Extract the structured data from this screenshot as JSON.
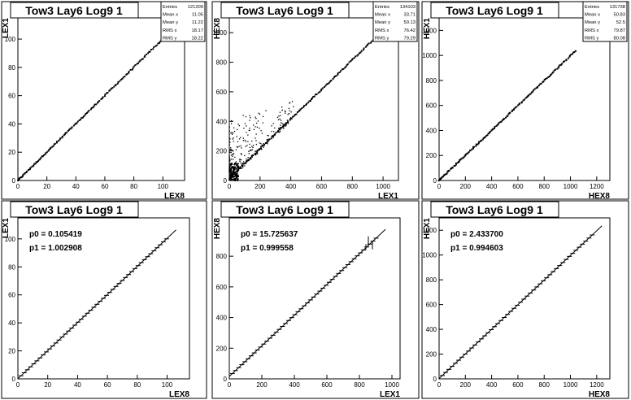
{
  "charts": [
    {
      "type": "scatter",
      "title": "Tow3 Lay6 Log9 1",
      "xlabel": "LEX8",
      "ylabel": "LEX1",
      "xlim": [
        0,
        115
      ],
      "ylim": [
        0,
        115
      ],
      "xticks": [
        0,
        20,
        40,
        60,
        80,
        100
      ],
      "yticks": [
        0,
        20,
        40,
        60,
        80,
        100
      ],
      "stats": [
        {
          "label": "Entries",
          "value": "121209"
        },
        {
          "label": "Mean x",
          "value": "11.05"
        },
        {
          "label": "Mean y",
          "value": "11.22"
        },
        {
          "label": "RMS x",
          "value": "18.17"
        },
        {
          "label": "RMS y",
          "value": "18.22"
        }
      ],
      "trend": {
        "slope": 1.0,
        "intercept": 0.1,
        "x_range": [
          0,
          106
        ]
      }
    },
    {
      "type": "scatter",
      "title": "Tow3 Lay6 Log9 1",
      "xlabel": "LEX1",
      "ylabel": "HEX8",
      "xlim": [
        0,
        1100
      ],
      "ylim": [
        0,
        1100
      ],
      "xticks": [
        0,
        200,
        400,
        600,
        800,
        1000
      ],
      "yticks": [
        0,
        200,
        400,
        600,
        800,
        1000
      ],
      "stats": [
        {
          "label": "Entries",
          "value": "134103"
        },
        {
          "label": "Mean x",
          "value": "33.71"
        },
        {
          "label": "Mean y",
          "value": "50.13"
        },
        {
          "label": "RMS x",
          "value": "76.42"
        },
        {
          "label": "RMS y",
          "value": "79.29"
        }
      ],
      "trend": {
        "slope": 1.0,
        "intercept": 15.7,
        "x_range": [
          0,
          1000
        ]
      }
    },
    {
      "type": "scatter",
      "title": "Tow3 Lay6 Log9 1",
      "xlabel": "HEX8",
      "ylabel": "HEX1",
      "xlim": [
        0,
        1300
      ],
      "ylim": [
        0,
        1300
      ],
      "xticks": [
        0,
        200,
        400,
        600,
        800,
        1000,
        1200
      ],
      "yticks": [
        0,
        200,
        400,
        600,
        800,
        1000,
        1200
      ],
      "stats": [
        {
          "label": "Entries",
          "value": "131738"
        },
        {
          "label": "Mean x",
          "value": "50.83"
        },
        {
          "label": "Mean y",
          "value": "52.5"
        },
        {
          "label": "RMS x",
          "value": "79.87"
        },
        {
          "label": "RMS y",
          "value": "80.08"
        }
      ],
      "trend": {
        "slope": 0.995,
        "intercept": 2.4,
        "x_range": [
          0,
          1050
        ]
      }
    },
    {
      "type": "line",
      "title": "Tow3 Lay6 Log9 1",
      "xlabel": "LEX8",
      "ylabel": "LEX1",
      "xlim": [
        0,
        115
      ],
      "ylim": [
        0,
        115
      ],
      "xticks": [
        0,
        20,
        40,
        60,
        80,
        100
      ],
      "yticks": [
        0,
        20,
        40,
        60,
        80,
        100
      ],
      "fit_params": [
        "p0 = 0.105419",
        "p1 = 1.002908"
      ],
      "fit": {
        "p0": 0.105419,
        "p1": 1.002908,
        "x_range": [
          0,
          106
        ]
      }
    },
    {
      "type": "line",
      "title": "Tow3 Lay6 Log9 1",
      "xlabel": "LEX1",
      "ylabel": "HEX8",
      "xlim": [
        0,
        1050
      ],
      "ylim": [
        0,
        1050
      ],
      "xticks": [
        0,
        200,
        400,
        600,
        800,
        1000
      ],
      "yticks": [
        0,
        200,
        400,
        600,
        800
      ],
      "fit_params": [
        "p0 = 15.725637",
        "p1 = 0.999558"
      ],
      "fit": {
        "p0": 15.725637,
        "p1": 0.999558,
        "x_range": [
          0,
          960
        ]
      }
    },
    {
      "type": "line",
      "title": "Tow3 Lay6 Log9 1",
      "xlabel": "HEX8",
      "ylabel": "HEX1",
      "xlim": [
        0,
        1300
      ],
      "ylim": [
        0,
        1300
      ],
      "xticks": [
        0,
        200,
        400,
        600,
        800,
        1000,
        1200
      ],
      "yticks": [
        0,
        200,
        400,
        600,
        800,
        1000,
        1200
      ],
      "fit_params": [
        "p0 = 2.433700",
        "p1 = 0.994603"
      ],
      "fit": {
        "p0": 2.4337,
        "p1": 0.994603,
        "x_range": [
          0,
          1240
        ]
      }
    }
  ]
}
